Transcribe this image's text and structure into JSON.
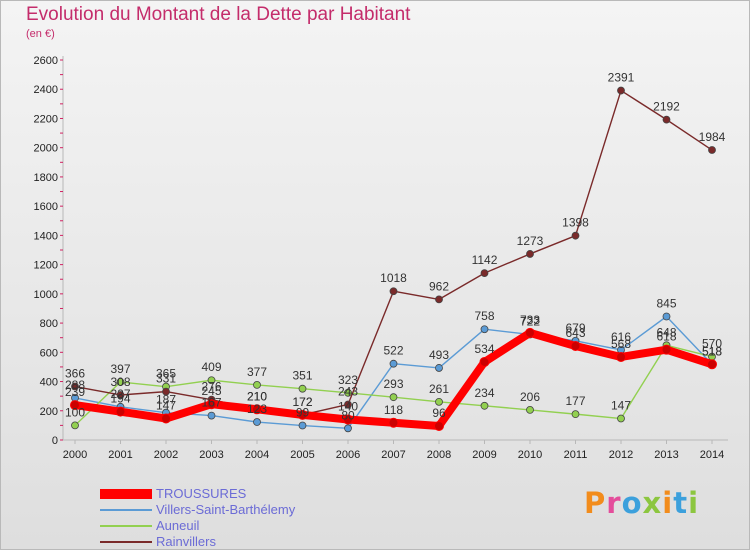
{
  "chart_data": {
    "type": "line",
    "title": "Evolution du Montant de la Dette par Habitant",
    "subtitle": "(en €)",
    "x": [
      "2000",
      "2001",
      "2002",
      "2003",
      "2004",
      "2005",
      "2006",
      "2007",
      "2008",
      "2009",
      "2010",
      "2011",
      "2012",
      "2013",
      "2014"
    ],
    "ylim": [
      0,
      2600
    ],
    "yticks": [
      0,
      200,
      400,
      600,
      800,
      1000,
      1200,
      1400,
      1600,
      1800,
      2000,
      2200,
      2400,
      2600
    ],
    "grid": false,
    "legend_position": "bottom-left",
    "series": [
      {
        "name": "Villers-Saint-Barthélemy",
        "color": "#5b9bd5",
        "values": [
          288,
          227,
          187,
          167,
          123,
          99,
          80,
          522,
          493,
          758,
          722,
          679,
          616,
          845,
          518
        ]
      },
      {
        "name": "Auneuil",
        "color": "#92d050",
        "values": [
          100,
          397,
          365,
          409,
          377,
          351,
          323,
          293,
          261,
          234,
          206,
          177,
          147,
          648,
          570
        ]
      },
      {
        "name": "Rainvillers",
        "color": "#7a2a2a",
        "values": [
          366,
          308,
          331,
          276,
          210,
          172,
          243,
          1018,
          962,
          1142,
          1273,
          1398,
          2391,
          2192,
          1984
        ]
      },
      {
        "name": "TROUSSURES",
        "color": "#ff0000",
        "values": [
          239,
          194,
          147,
          245,
          210,
          172,
          140,
          118,
          96,
          534,
          733,
          643,
          568,
          618,
          518
        ]
      }
    ]
  },
  "logo": {
    "letters": [
      {
        "char": "P",
        "color": "#f28c1c"
      },
      {
        "char": "r",
        "color": "#e44d9b"
      },
      {
        "char": "o",
        "color": "#3ca0dc"
      },
      {
        "char": "x",
        "color": "#8cc63f"
      },
      {
        "char": "i",
        "color": "#f28c1c"
      },
      {
        "char": "t",
        "color": "#3ca0dc"
      },
      {
        "char": "i",
        "color": "#8cc63f"
      }
    ]
  }
}
